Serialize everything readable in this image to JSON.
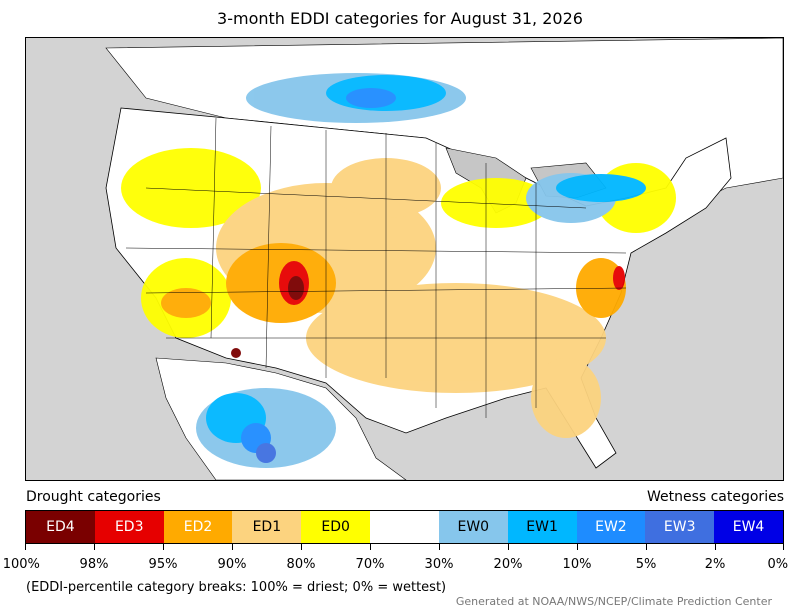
{
  "title": "3-month EDDI categories for August 31, 2026",
  "legend": {
    "left_heading": "Drought categories",
    "right_heading": "Wetness categories",
    "categories": [
      {
        "label": "ED4",
        "color": "#7a0000",
        "text": "dark"
      },
      {
        "label": "ED3",
        "color": "#e60000",
        "text": "dark"
      },
      {
        "label": "ED2",
        "color": "#ffaa00",
        "text": "dark"
      },
      {
        "label": "ED1",
        "color": "#fcd37f",
        "text": "light"
      },
      {
        "label": "ED0",
        "color": "#ffff00",
        "text": "light"
      },
      {
        "label": "",
        "color": "#ffffff",
        "text": "light"
      },
      {
        "label": "EW0",
        "color": "#86c6ec",
        "text": "light"
      },
      {
        "label": "EW1",
        "color": "#00b7ff",
        "text": "light"
      },
      {
        "label": "EW2",
        "color": "#1e8cff",
        "text": "dark"
      },
      {
        "label": "EW3",
        "color": "#3f6fe0",
        "text": "dark"
      },
      {
        "label": "EW4",
        "color": "#0000e6",
        "text": "dark"
      }
    ],
    "breaks": [
      "100%",
      "98%",
      "95%",
      "90%",
      "80%",
      "70%",
      "30%",
      "20%",
      "10%",
      "5%",
      "2%",
      "0%"
    ]
  },
  "note": "(EDDI-percentile category breaks: 100% = driest; 0% = wettest)",
  "credit": "Generated at NOAA/NWS/NCEP/Climate Prediction Center",
  "map": {
    "background_color": "#d3d3d3",
    "land_color": "#ffffff",
    "water_color": "#c6c6c6"
  }
}
